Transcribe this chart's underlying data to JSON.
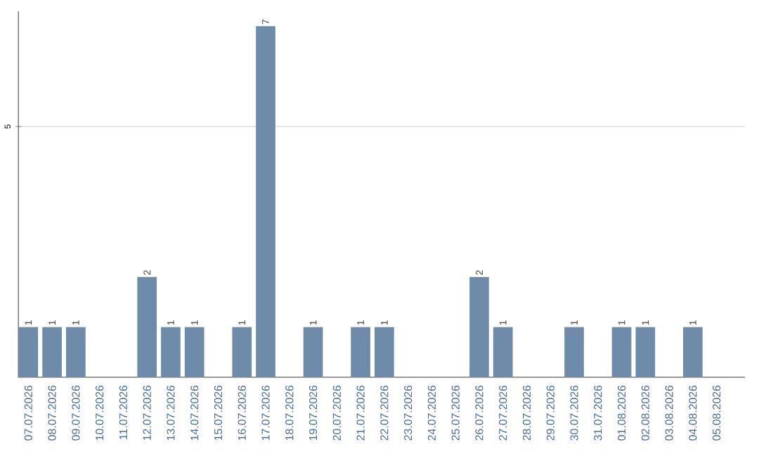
{
  "chart_data": {
    "type": "bar",
    "categories": [
      "07.07.2026",
      "08.07.2026",
      "09.07.2026",
      "10.07.2026",
      "11.07.2026",
      "12.07.2026",
      "13.07.2026",
      "14.07.2026",
      "15.07.2026",
      "16.07.2026",
      "17.07.2026",
      "18.07.2026",
      "19.07.2026",
      "20.07.2026",
      "21.07.2026",
      "22.07.2026",
      "23.07.2026",
      "24.07.2026",
      "25.07.2026",
      "26.07.2026",
      "27.07.2026",
      "28.07.2026",
      "29.07.2026",
      "30.07.2026",
      "31.07.2026",
      "01.08.2026",
      "02.08.2026",
      "03.08.2026",
      "04.08.2026",
      "05.08.2026"
    ],
    "values": [
      1,
      1,
      1,
      0,
      0,
      2,
      1,
      1,
      0,
      1,
      7,
      0,
      1,
      0,
      1,
      1,
      0,
      0,
      0,
      2,
      1,
      0,
      0,
      1,
      0,
      1,
      1,
      0,
      1,
      0
    ],
    "value_labels": [
      "1",
      "1",
      "1",
      null,
      null,
      "2",
      "1",
      "1",
      null,
      "1",
      "7",
      null,
      "1",
      null,
      "1",
      "1",
      null,
      null,
      null,
      "2",
      "1",
      null,
      null,
      "1",
      null,
      "1",
      "1",
      null,
      "1",
      null
    ],
    "color": "#6e8caa",
    "ylim": [
      0,
      7.3
    ],
    "yticks": [
      5
    ],
    "grid": "y"
  }
}
